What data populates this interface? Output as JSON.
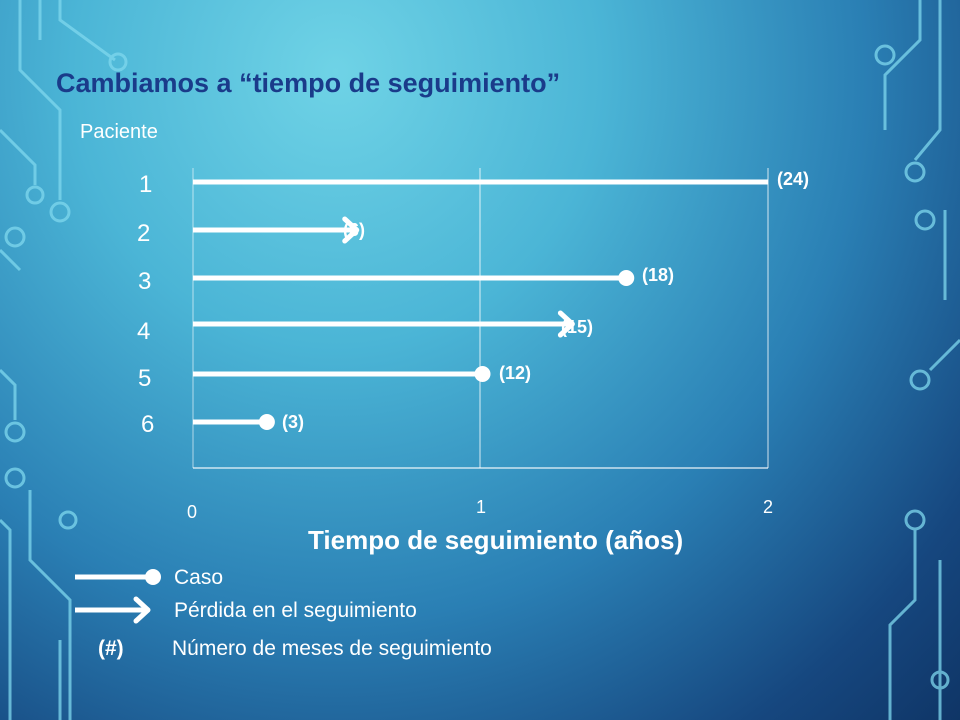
{
  "title": "Cambiamos a “tiempo de seguimiento”",
  "y_axis_label": "Paciente",
  "x_axis_label": "Tiempo de seguimiento (años)",
  "x_ticks": [
    "0",
    "1",
    "2"
  ],
  "colors": {
    "title": "#1a3b8a",
    "lines": "#ffffff",
    "circuit": "#7fd8ee"
  },
  "chart_data": {
    "type": "timeline",
    "title": "Cambiamos a “tiempo de seguimiento”",
    "xlabel": "Tiempo de seguimiento (años)",
    "ylabel": "Paciente",
    "xlim": [
      0,
      2
    ],
    "patients": [
      {
        "id": "1",
        "months": 24,
        "end": "none",
        "label": "(24)"
      },
      {
        "id": "2",
        "months": 6,
        "end": "arrow",
        "label": "(6)"
      },
      {
        "id": "3",
        "months": 18,
        "end": "dot",
        "label": "(18)"
      },
      {
        "id": "4",
        "months": 15,
        "end": "arrow",
        "label": "(15)"
      },
      {
        "id": "5",
        "months": 12,
        "end": "dot",
        "label": "(12)"
      },
      {
        "id": "6",
        "months": 3,
        "end": "dot",
        "label": "(3)"
      }
    ]
  },
  "legend": {
    "case": "Caso",
    "lost": "Pérdida en el seguimiento",
    "months_symbol": "(#)",
    "months_desc": "Número de meses de seguimiento"
  }
}
